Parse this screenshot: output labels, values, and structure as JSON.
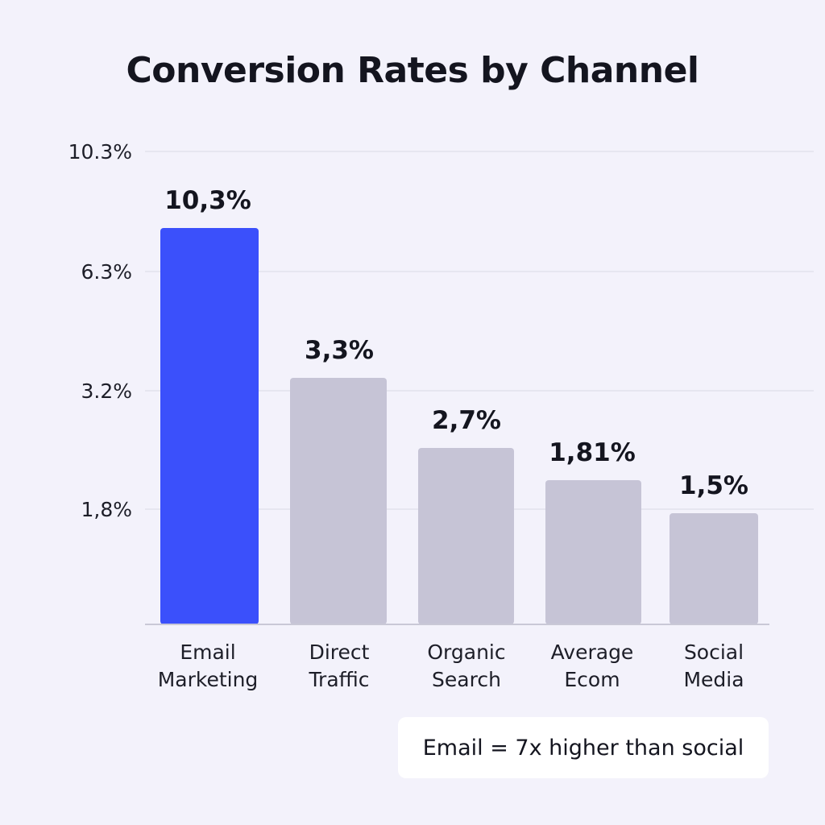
{
  "chart_data": {
    "type": "bar",
    "title": "Conversion Rates by Channel",
    "categories": [
      [
        "Email",
        "Marketing"
      ],
      [
        "Direct",
        "Traffic"
      ],
      [
        "Organic",
        "Search"
      ],
      [
        "Average",
        "Ecom"
      ],
      [
        "Social",
        "Media"
      ]
    ],
    "values": [
      10.3,
      3.3,
      2.7,
      1.81,
      1.5
    ],
    "value_labels": [
      "10,3%",
      "3,3%",
      "2,7%",
      "1,81%",
      "1,5%"
    ],
    "y_ticks": [
      {
        "label": "10.3%",
        "value": 10.3
      },
      {
        "label": "6.3%",
        "value": 6.3
      },
      {
        "label": "3.2%",
        "value": 3.2
      },
      {
        "label": "1,8%",
        "value": 1.8
      }
    ],
    "xlabel": "",
    "ylabel": "",
    "grid": true,
    "colors": {
      "highlight": "#3b50fb",
      "default": "#c6c4d6",
      "grid": "#e2e1ec",
      "axis": "#c9c8d6"
    },
    "annotation": "Email = 7x higher than social"
  }
}
